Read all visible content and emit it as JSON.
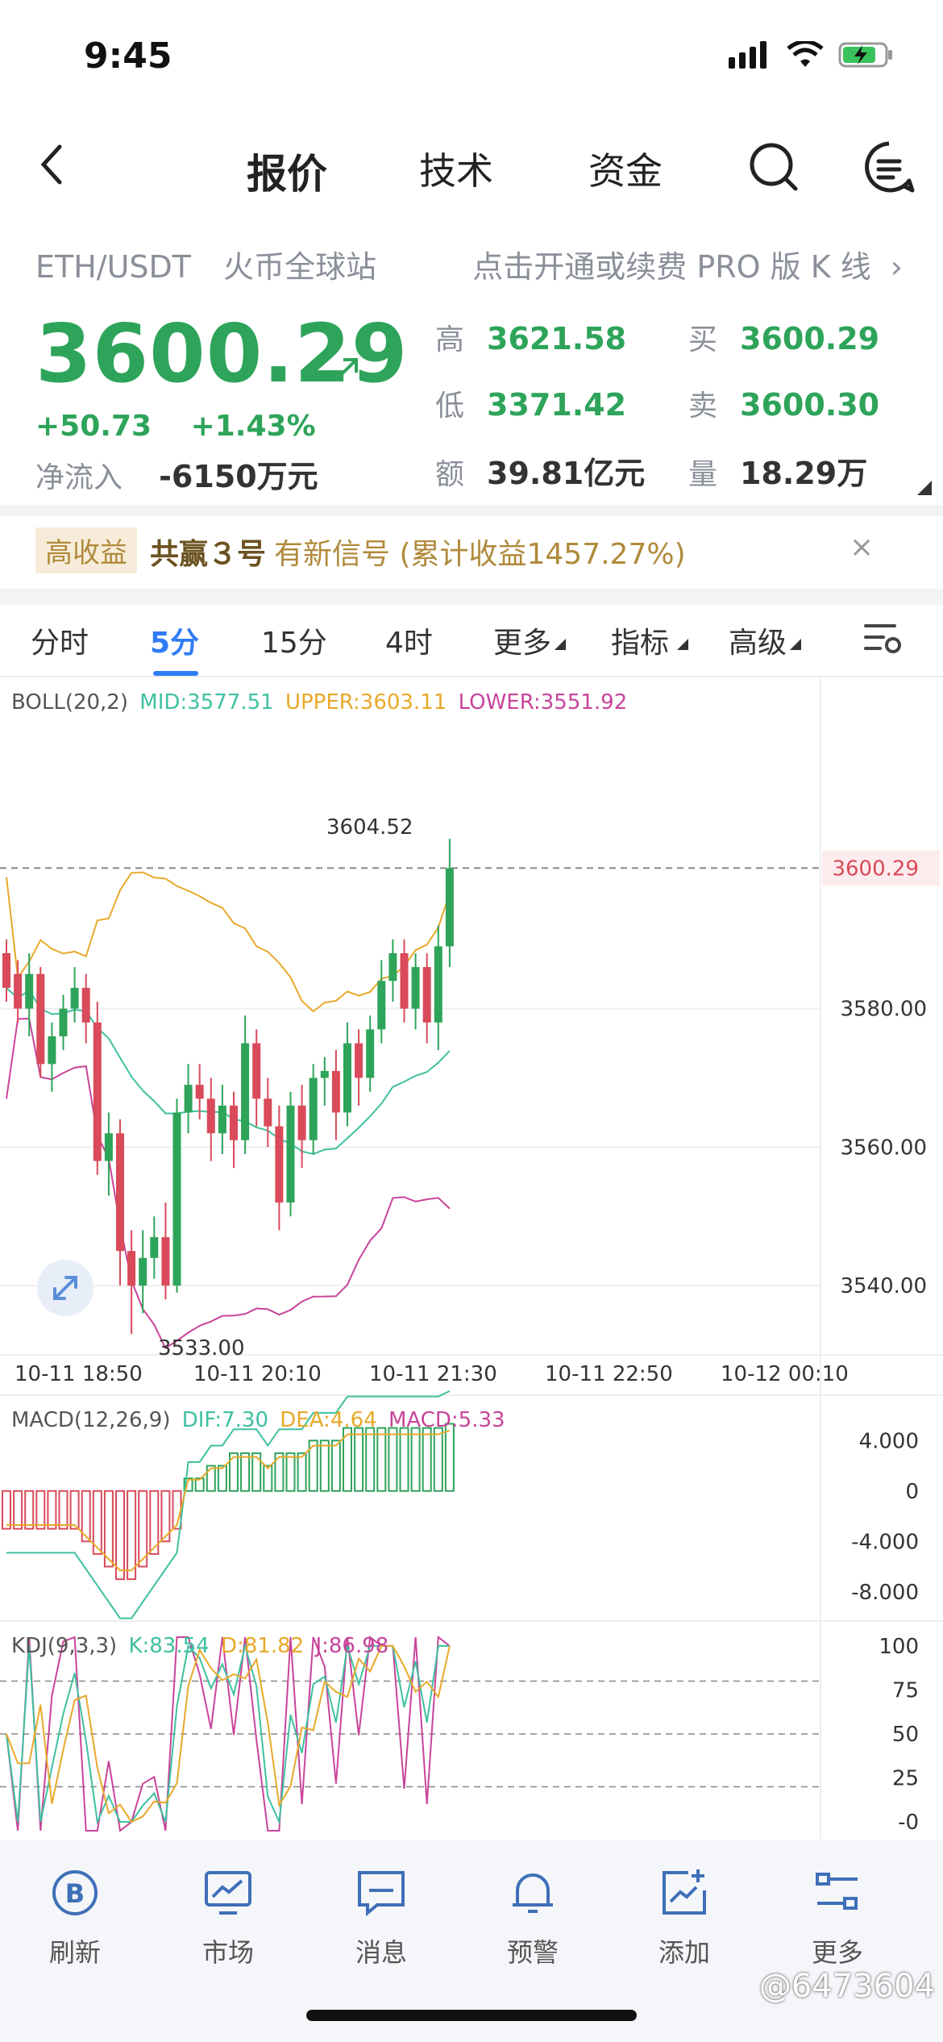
{
  "status_bar": {
    "time": "9:45"
  },
  "nav": {
    "tabs": [
      "报价",
      "技术",
      "资金"
    ],
    "active_tab": "报价"
  },
  "header": {
    "pair": "ETH/USDT",
    "exchange": "火币全球站",
    "pro_link": "点击开通或续费 PRO 版 K 线"
  },
  "quote": {
    "price": "3600.29",
    "change": "+50.73",
    "change_pct": "+1.43%",
    "net_inflow_label": "净流入",
    "net_inflow": "-6150万元",
    "high_label": "高",
    "high": "3621.58",
    "low_label": "低",
    "low": "3371.42",
    "amount_label": "额",
    "amount": "39.81亿元",
    "bid_label": "买",
    "bid": "3600.29",
    "ask_label": "卖",
    "ask": "3600.30",
    "volume_label": "量",
    "volume": "18.29万"
  },
  "banner": {
    "chip": "高收益",
    "name": "共赢３号",
    "text": "有新信号 (累计收益1457.27%)"
  },
  "kline_tabs": [
    {
      "label": "分时",
      "active": false
    },
    {
      "label": "5分",
      "active": true
    },
    {
      "label": "15分",
      "active": false
    },
    {
      "label": "4时",
      "active": false
    },
    {
      "label": "更多",
      "active": false
    },
    {
      "label": "指标",
      "active": false
    },
    {
      "label": "高级",
      "active": false
    }
  ],
  "boll": {
    "name": "BOLL(20,2)",
    "mid": "MID:3577.51",
    "upper": "UPPER:3603.11",
    "lower": "LOWER:3551.92"
  },
  "macd": {
    "name": "MACD(12,26,9)",
    "dif": "DIF:7.30",
    "dea": "DEA:4.64",
    "macd": "MACD:5.33"
  },
  "kdj": {
    "name": "KDJ(9,3,3)",
    "k": "K:83.54",
    "d": "D:81.82",
    "j": "J:86.98"
  },
  "colors": {
    "up": "#2ea45a",
    "down": "#d94a5a",
    "mid": "#3fc0a0",
    "upper": "#e8a92a",
    "lower": "#c8449a",
    "accent": "#2f7cf6"
  },
  "chart_data": {
    "type": "candlestick",
    "price_axis": [
      "3600.29",
      "3580.00",
      "3560.00",
      "3540.00"
    ],
    "price_range": [
      3530,
      3622
    ],
    "time_axis": [
      "10-11 18:50",
      "10-11 20:10",
      "10-11 21:30",
      "10-11 22:50",
      "10-12 00:10"
    ],
    "high_annotation": "3604.52",
    "low_annotation": "3533.00",
    "current_price_tag": "3600.29",
    "candles": [
      [
        3588,
        3583,
        3590,
        3581
      ],
      [
        3585,
        3580,
        3587,
        3578
      ],
      [
        3580,
        3585,
        3588,
        3576
      ],
      [
        3585,
        3572,
        3586,
        3570
      ],
      [
        3572,
        3576,
        3578,
        3568
      ],
      [
        3576,
        3580,
        3582,
        3574
      ],
      [
        3580,
        3583,
        3586,
        3578
      ],
      [
        3583,
        3578,
        3585,
        3575
      ],
      [
        3578,
        3558,
        3581,
        3556
      ],
      [
        3558,
        3562,
        3565,
        3553
      ],
      [
        3562,
        3545,
        3564,
        3540
      ],
      [
        3545,
        3540,
        3548,
        3533
      ],
      [
        3540,
        3544,
        3548,
        3536
      ],
      [
        3544,
        3547,
        3550,
        3541
      ],
      [
        3547,
        3540,
        3552,
        3538
      ],
      [
        3540,
        3565,
        3567,
        3539
      ],
      [
        3565,
        3569,
        3572,
        3562
      ],
      [
        3569,
        3567,
        3572,
        3564
      ],
      [
        3567,
        3562,
        3570,
        3558
      ],
      [
        3562,
        3566,
        3569,
        3559
      ],
      [
        3566,
        3561,
        3568,
        3557
      ],
      [
        3561,
        3575,
        3579,
        3559
      ],
      [
        3575,
        3567,
        3577,
        3563
      ],
      [
        3567,
        3563,
        3570,
        3560
      ],
      [
        3563,
        3552,
        3566,
        3548
      ],
      [
        3552,
        3566,
        3568,
        3550
      ],
      [
        3566,
        3561,
        3569,
        3557
      ],
      [
        3561,
        3570,
        3572,
        3559
      ],
      [
        3570,
        3571,
        3573,
        3566
      ],
      [
        3571,
        3565,
        3574,
        3561
      ],
      [
        3565,
        3575,
        3578,
        3563
      ],
      [
        3575,
        3570,
        3577,
        3566
      ],
      [
        3570,
        3577,
        3579,
        3568
      ],
      [
        3577,
        3584,
        3587,
        3575
      ],
      [
        3584,
        3588,
        3590,
        3581
      ],
      [
        3588,
        3580,
        3590,
        3578
      ],
      [
        3580,
        3586,
        3588,
        3577
      ],
      [
        3586,
        3578,
        3588,
        3575
      ],
      [
        3578,
        3589,
        3592,
        3574
      ],
      [
        3589,
        3600.29,
        3604.52,
        3586
      ]
    ],
    "macd_axis": [
      "4.000",
      "0",
      "-4.000",
      "-8.000"
    ],
    "macd_range": [
      -10,
      6
    ],
    "macd_hist": [
      -3,
      -3,
      -3,
      -3,
      -3,
      -3,
      -3,
      -4,
      -5,
      -6,
      -7,
      -7,
      -6,
      -5,
      -4,
      -3,
      1,
      1,
      2,
      2,
      3,
      3,
      3,
      2,
      3,
      3,
      3,
      4,
      4,
      4,
      5,
      5,
      5,
      5,
      5,
      5,
      5,
      5,
      5,
      5.33
    ],
    "kdj_axis": [
      "100",
      "75",
      "50",
      "25",
      "-0"
    ],
    "kdj_range": [
      -5,
      105
    ],
    "kdj_ref_lines": [
      80,
      50,
      20
    ]
  },
  "bottom_nav": [
    {
      "label": "刷新",
      "icon": "refresh-b-icon"
    },
    {
      "label": "市场",
      "icon": "market-monitor-icon"
    },
    {
      "label": "消息",
      "icon": "message-icon"
    },
    {
      "label": "预警",
      "icon": "bell-icon"
    },
    {
      "label": "添加",
      "icon": "add-chart-icon"
    },
    {
      "label": "更多",
      "icon": "more-settings-icon"
    }
  ],
  "watermark": "@6473604"
}
